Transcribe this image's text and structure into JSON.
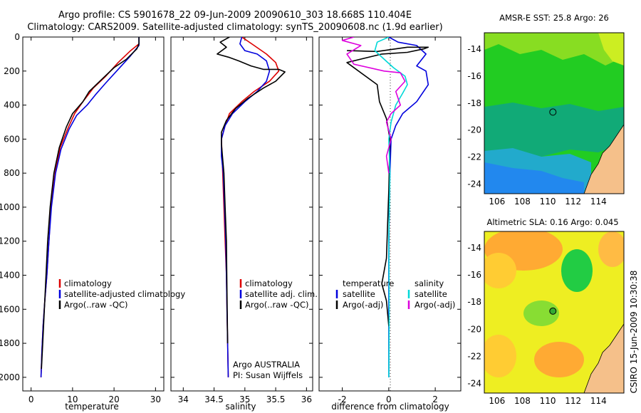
{
  "figure": {
    "title_line1": "Argo profile: CS 5901678_22 09-Jun-2009 20090610_303 18.668S 110.404E",
    "title_line2": "Climatology: CARS2009. Satellite-adjusted climatology: synTS_20090608.nc (1.9d earlier)",
    "stamp": "CSIRO 15-Jun-2009 10:30:38"
  },
  "chart_data": [
    {
      "id": "temperature",
      "type": "line",
      "xlabel": "temperature",
      "ylabel": "",
      "xlim": [
        -2,
        32
      ],
      "ylim": [
        2080,
        0
      ],
      "xticks": [
        0,
        10,
        20,
        30
      ],
      "yticks": [
        0,
        200,
        400,
        600,
        800,
        1000,
        1200,
        1400,
        1600,
        1800,
        2000
      ],
      "series": [
        {
          "name": "climatology",
          "color": "#dd0000",
          "x": [
            26,
            24,
            21,
            18,
            15,
            12.5,
            10.5,
            9,
            7,
            5.8,
            4.8,
            4.3,
            3.8,
            3.3,
            2.9,
            2.6,
            2.4
          ],
          "y": [
            40,
            80,
            150,
            230,
            300,
            380,
            450,
            530,
            650,
            800,
            1000,
            1200,
            1400,
            1550,
            1700,
            1850,
            2000
          ]
        },
        {
          "name": "satellite-adjusted climatology",
          "color": "#0000dd",
          "x": [
            26,
            26,
            24,
            21,
            18,
            15.5,
            13.5,
            11,
            9.2,
            7.2,
            5.9,
            4.9,
            4.3,
            3.8,
            3.3,
            2.9,
            2.6,
            2.4
          ],
          "y": [
            0,
            50,
            110,
            190,
            270,
            340,
            400,
            460,
            540,
            660,
            800,
            1000,
            1200,
            1400,
            1550,
            1700,
            1850,
            2000
          ]
        },
        {
          "name": "Argo(..raw -QC)",
          "color": "#000000",
          "x": [
            26,
            26,
            25.5,
            23,
            20,
            17,
            14,
            12.5,
            10,
            8.5,
            6.8,
            5.5,
            4.6,
            4,
            3.6,
            3.2,
            2.8,
            2.5
          ],
          "y": [
            0,
            40,
            70,
            130,
            180,
            250,
            320,
            380,
            450,
            530,
            650,
            800,
            1000,
            1200,
            1400,
            1600,
            1800,
            1950
          ]
        }
      ],
      "legend": [
        "climatology",
        "satellite-adjusted climatology",
        "Argo(..raw -QC)"
      ]
    },
    {
      "id": "salinity",
      "type": "line",
      "xlabel": "salinity",
      "ylabel": "",
      "xlim": [
        33.8,
        36.1
      ],
      "ylim": [
        2080,
        0
      ],
      "xticks": [
        34,
        34.5,
        35,
        35.5,
        36
      ],
      "yticks": [],
      "series": [
        {
          "name": "climatology",
          "color": "#dd0000",
          "x": [
            34.95,
            35.15,
            35.35,
            35.5,
            35.55,
            35.4,
            35.15,
            34.95,
            34.75,
            34.68,
            34.62,
            34.64,
            34.66,
            34.68,
            34.7,
            34.71,
            34.72,
            34.73
          ],
          "y": [
            0,
            50,
            100,
            150,
            200,
            260,
            320,
            380,
            450,
            520,
            600,
            800,
            1000,
            1200,
            1400,
            1600,
            1800,
            2000
          ]
        },
        {
          "name": "satellite adj. clim.",
          "color": "#0000dd",
          "x": [
            34.95,
            34.92,
            35.0,
            35.2,
            35.35,
            35.4,
            35.35,
            35.2,
            35.0,
            34.8,
            34.68,
            34.62,
            34.62,
            34.65,
            34.67,
            34.69,
            34.7,
            34.71,
            34.72,
            34.73
          ],
          "y": [
            0,
            40,
            80,
            100,
            140,
            200,
            260,
            320,
            380,
            450,
            520,
            600,
            700,
            800,
            1000,
            1200,
            1400,
            1600,
            1800,
            2000
          ]
        },
        {
          "name": "Argo(..raw -QC)",
          "color": "#000000",
          "x": [
            34.75,
            34.6,
            34.7,
            34.55,
            34.75,
            34.9,
            35.1,
            35.3,
            35.55,
            35.65,
            35.5,
            35.3,
            35.05,
            34.85,
            34.7,
            34.62,
            34.62,
            34.66,
            34.68,
            34.7,
            34.71,
            34.72
          ],
          "y": [
            0,
            30,
            60,
            100,
            120,
            140,
            170,
            190,
            190,
            205,
            260,
            300,
            360,
            420,
            490,
            560,
            630,
            800,
            1000,
            1200,
            1500,
            1800
          ]
        }
      ],
      "legend": [
        "climatology",
        "satellite adj. clim.",
        "Argo(..raw -QC)"
      ],
      "annotation": [
        "Argo AUSTRALIA",
        "PI: Susan Wijffels"
      ]
    },
    {
      "id": "difference",
      "type": "line",
      "xlabel": "difference from climatology",
      "ylabel": "",
      "xlim": [
        -3,
        3.1
      ],
      "ylim": [
        2080,
        0
      ],
      "xticks": [
        -2,
        0,
        2
      ],
      "yticks": [],
      "series": [
        {
          "name": "satellite (temperature)",
          "color": "#0000dd",
          "x": [
            0,
            0.4,
            1.2,
            1.6,
            1.2,
            1.6,
            1.7,
            1.2,
            0.6,
            0.3,
            0.1,
            0.05,
            0.02,
            0,
            0,
            0
          ],
          "y": [
            0,
            30,
            50,
            100,
            170,
            200,
            280,
            380,
            450,
            520,
            600,
            800,
            1000,
            1300,
            1600,
            2000
          ]
        },
        {
          "name": "Argo(-adj) (temperature)",
          "color": "#000000",
          "x": [
            -1.8,
            -0.5,
            0.8,
            1.7,
            1.5,
            0.8,
            -0.3,
            -1.8,
            -0.5,
            -0.4,
            -0.1,
            0.05,
            0,
            -0.1,
            -0.3,
            -0.1,
            0
          ],
          "y": [
            80,
            85,
            60,
            60,
            70,
            90,
            100,
            150,
            280,
            380,
            480,
            600,
            900,
            1300,
            1450,
            1550,
            1700
          ]
        },
        {
          "name": "satellite (salinity)",
          "color": "#00d8d8",
          "x": [
            0,
            -0.5,
            -0.6,
            -0.2,
            0.2,
            0.7,
            0.8,
            0.6,
            0.3,
            0.1,
            0.0,
            0.05,
            0.0,
            0.02,
            0.0
          ],
          "y": [
            0,
            30,
            80,
            130,
            180,
            230,
            280,
            330,
            400,
            500,
            600,
            800,
            1200,
            1600,
            2000
          ]
        },
        {
          "name": "Argo(-adj) (salinity)",
          "color": "#dd00dd",
          "x": [
            -1.5,
            -2.0,
            -1.2,
            -1.8,
            -1.5,
            -0.2,
            0.5,
            0.7,
            0.3,
            0.5,
            0.1,
            -0.1,
            0.1,
            -0.1,
            0.0
          ],
          "y": [
            0,
            20,
            50,
            100,
            160,
            200,
            210,
            260,
            320,
            400,
            450,
            500,
            600,
            700,
            800
          ]
        }
      ],
      "legend_temperature": {
        "header": "temperature",
        "items": [
          "satellite",
          "Argo(-adj)"
        ]
      },
      "legend_salinity": {
        "header": "salinity",
        "items": [
          "satellite",
          "Argo(-adj)"
        ]
      }
    },
    {
      "id": "sst_map",
      "type": "heatmap",
      "title": "AMSR-E SST: 25.8 Argo: 26",
      "xlim": [
        105,
        116
      ],
      "ylim": [
        -24.7,
        -12.8
      ],
      "xticks": [
        106,
        108,
        110,
        112,
        114
      ],
      "yticks": [
        -14,
        -16,
        -18,
        -20,
        -22,
        -24
      ],
      "marker": {
        "lon": 110.404,
        "lat": -18.668,
        "fill": "none"
      }
    },
    {
      "id": "sla_map",
      "type": "heatmap",
      "title": "Altimetric SLA: 0.16 Argo: 0.045",
      "xlim": [
        105,
        116
      ],
      "ylim": [
        -24.7,
        -12.8
      ],
      "xticks": [
        106,
        108,
        110,
        112,
        114
      ],
      "yticks": [
        -14,
        -16,
        -18,
        -20,
        -22,
        -24
      ],
      "marker": {
        "lon": 110.404,
        "lat": -18.668,
        "fill": "#33aa33"
      }
    }
  ]
}
